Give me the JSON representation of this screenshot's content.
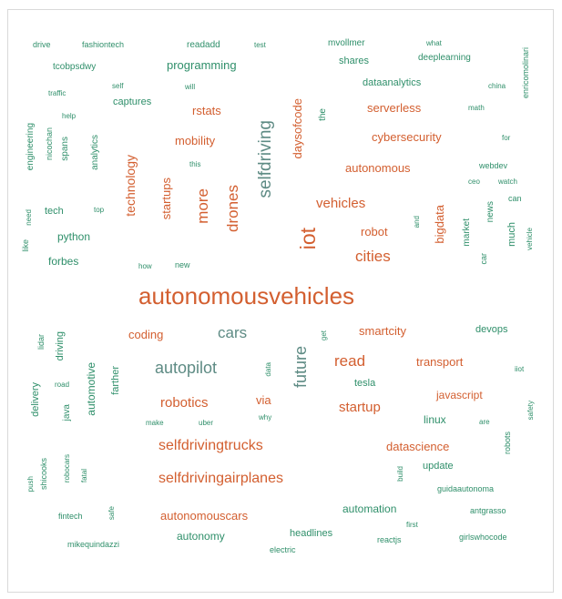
{
  "colors": {
    "orange": "#d35f30",
    "teal": "#2f8f6a",
    "gray": "#5e8b84"
  },
  "words": [
    {
      "text": "drive",
      "color": "teal"
    },
    {
      "text": "fashiontech",
      "color": "teal"
    },
    {
      "text": "readadd",
      "color": "teal"
    },
    {
      "text": "test",
      "color": "teal"
    },
    {
      "text": "mvollmer",
      "color": "teal"
    },
    {
      "text": "what",
      "color": "teal"
    },
    {
      "text": "tcobpsdwy",
      "color": "teal"
    },
    {
      "text": "programming",
      "color": "teal"
    },
    {
      "text": "shares",
      "color": "teal"
    },
    {
      "text": "deeplearning",
      "color": "teal"
    },
    {
      "text": "enricomolinari",
      "color": "teal"
    },
    {
      "text": "self",
      "color": "teal"
    },
    {
      "text": "will",
      "color": "teal"
    },
    {
      "text": "dataanalytics",
      "color": "teal"
    },
    {
      "text": "china",
      "color": "teal"
    },
    {
      "text": "traffic",
      "color": "teal"
    },
    {
      "text": "captures",
      "color": "teal"
    },
    {
      "text": "rstats",
      "color": "orange"
    },
    {
      "text": "serverless",
      "color": "orange"
    },
    {
      "text": "math",
      "color": "teal"
    },
    {
      "text": "help",
      "color": "teal"
    },
    {
      "text": "the",
      "color": "teal"
    },
    {
      "text": "daysofcode",
      "color": "orange"
    },
    {
      "text": "engineering",
      "color": "teal"
    },
    {
      "text": "nicochan",
      "color": "teal"
    },
    {
      "text": "spans",
      "color": "teal"
    },
    {
      "text": "analytics",
      "color": "teal"
    },
    {
      "text": "mobility",
      "color": "orange"
    },
    {
      "text": "cybersecurity",
      "color": "orange"
    },
    {
      "text": "for",
      "color": "teal"
    },
    {
      "text": "selfdriving",
      "color": "gray"
    },
    {
      "text": "this",
      "color": "teal"
    },
    {
      "text": "autonomous",
      "color": "orange"
    },
    {
      "text": "webdev",
      "color": "teal"
    },
    {
      "text": "technology",
      "color": "orange"
    },
    {
      "text": "ceo",
      "color": "teal"
    },
    {
      "text": "watch",
      "color": "teal"
    },
    {
      "text": "startups",
      "color": "orange"
    },
    {
      "text": "more",
      "color": "orange"
    },
    {
      "text": "drones",
      "color": "orange"
    },
    {
      "text": "can",
      "color": "teal"
    },
    {
      "text": "tech",
      "color": "teal"
    },
    {
      "text": "top",
      "color": "teal"
    },
    {
      "text": "vehicles",
      "color": "orange"
    },
    {
      "text": "need",
      "color": "teal"
    },
    {
      "text": "news",
      "color": "teal"
    },
    {
      "text": "and",
      "color": "teal"
    },
    {
      "text": "bigdata",
      "color": "orange"
    },
    {
      "text": "market",
      "color": "teal"
    },
    {
      "text": "much",
      "color": "teal"
    },
    {
      "text": "vehicle",
      "color": "teal"
    },
    {
      "text": "robot",
      "color": "orange"
    },
    {
      "text": "python",
      "color": "teal"
    },
    {
      "text": "iot",
      "color": "orange"
    },
    {
      "text": "like",
      "color": "teal"
    },
    {
      "text": "cities",
      "color": "orange"
    },
    {
      "text": "car",
      "color": "teal"
    },
    {
      "text": "forbes",
      "color": "teal"
    },
    {
      "text": "how",
      "color": "teal"
    },
    {
      "text": "new",
      "color": "teal"
    },
    {
      "text": "autonomousvehicles",
      "color": "orange"
    },
    {
      "text": "lidar",
      "color": "teal"
    },
    {
      "text": "get",
      "color": "teal"
    },
    {
      "text": "cars",
      "color": "gray"
    },
    {
      "text": "coding",
      "color": "orange"
    },
    {
      "text": "smartcity",
      "color": "orange"
    },
    {
      "text": "devops",
      "color": "teal"
    },
    {
      "text": "driving",
      "color": "teal"
    },
    {
      "text": "autopilot",
      "color": "gray"
    },
    {
      "text": "future",
      "color": "gray"
    },
    {
      "text": "read",
      "color": "orange"
    },
    {
      "text": "transport",
      "color": "orange"
    },
    {
      "text": "data",
      "color": "teal"
    },
    {
      "text": "automotive",
      "color": "teal"
    },
    {
      "text": "farther",
      "color": "teal"
    },
    {
      "text": "tesla",
      "color": "teal"
    },
    {
      "text": "iiot",
      "color": "teal"
    },
    {
      "text": "road",
      "color": "teal"
    },
    {
      "text": "delivery",
      "color": "teal"
    },
    {
      "text": "robotics",
      "color": "orange"
    },
    {
      "text": "via",
      "color": "orange"
    },
    {
      "text": "javascript",
      "color": "orange"
    },
    {
      "text": "java",
      "color": "teal"
    },
    {
      "text": "startup",
      "color": "orange"
    },
    {
      "text": "make",
      "color": "teal"
    },
    {
      "text": "uber",
      "color": "teal"
    },
    {
      "text": "why",
      "color": "teal"
    },
    {
      "text": "linux",
      "color": "teal"
    },
    {
      "text": "are",
      "color": "teal"
    },
    {
      "text": "safety",
      "color": "teal"
    },
    {
      "text": "selfdrivingtrucks",
      "color": "orange"
    },
    {
      "text": "datascience",
      "color": "orange"
    },
    {
      "text": "robots",
      "color": "teal"
    },
    {
      "text": "shicooks",
      "color": "teal"
    },
    {
      "text": "robocars",
      "color": "teal"
    },
    {
      "text": "fatal",
      "color": "teal"
    },
    {
      "text": "update",
      "color": "teal"
    },
    {
      "text": "build",
      "color": "teal"
    },
    {
      "text": "push",
      "color": "teal"
    },
    {
      "text": "selfdrivingairplanes",
      "color": "orange"
    },
    {
      "text": "guidaautonoma",
      "color": "teal"
    },
    {
      "text": "automation",
      "color": "teal"
    },
    {
      "text": "antgrasso",
      "color": "teal"
    },
    {
      "text": "fintech",
      "color": "teal"
    },
    {
      "text": "safe",
      "color": "teal"
    },
    {
      "text": "autonomouscars",
      "color": "orange"
    },
    {
      "text": "first",
      "color": "teal"
    },
    {
      "text": "autonomy",
      "color": "teal"
    },
    {
      "text": "headlines",
      "color": "teal"
    },
    {
      "text": "girlswhocode",
      "color": "teal"
    },
    {
      "text": "reactjs",
      "color": "teal"
    },
    {
      "text": "mikequindazzi",
      "color": "teal"
    },
    {
      "text": "electric",
      "color": "teal"
    }
  ]
}
